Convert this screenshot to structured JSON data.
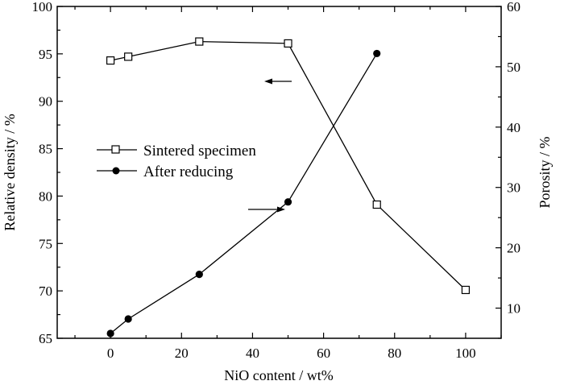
{
  "chart_data": {
    "type": "line",
    "xlabel": "NiO content / wt%",
    "ylabel_left": "Relative density / %",
    "ylabel_right": "Porosity / %",
    "xlim": [
      -15,
      110
    ],
    "ylim_left": [
      65,
      100
    ],
    "ylim_right": [
      5,
      60
    ],
    "x_ticks": [
      0,
      20,
      40,
      60,
      80,
      100
    ],
    "y_left_ticks": [
      65,
      70,
      75,
      80,
      85,
      90,
      95,
      100
    ],
    "y_right_ticks": [
      10,
      20,
      30,
      40,
      50,
      60
    ],
    "grid": false,
    "legend_position": "center-left",
    "series": [
      {
        "name": "Sintered specimen",
        "axis": "left",
        "marker": "open-square",
        "x": [
          0,
          5,
          25,
          50,
          75,
          100
        ],
        "y": [
          94.3,
          94.7,
          96.3,
          96.1,
          79.1,
          70.1
        ]
      },
      {
        "name": "After reducing",
        "axis": "right",
        "marker": "filled-circle",
        "x": [
          0,
          5,
          25,
          50,
          75
        ],
        "y": [
          5.8,
          8.2,
          15.6,
          27.6,
          52.2
        ]
      }
    ]
  }
}
